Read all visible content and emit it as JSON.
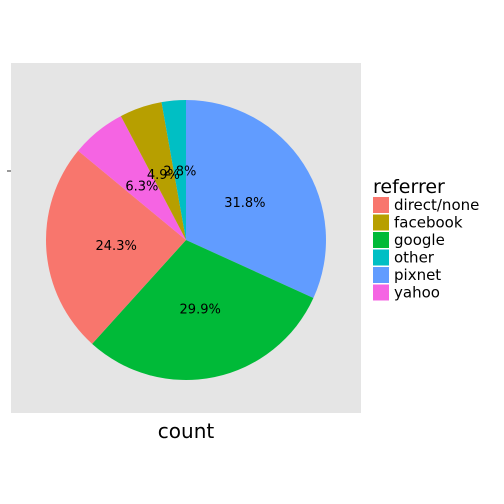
{
  "chart_data": {
    "type": "pie",
    "xlabel": "count",
    "legend_title": "referrer",
    "legend_position": "right",
    "background_panel": "#e5e5e5",
    "series": [
      {
        "name": "direct/none",
        "value": 24.3,
        "label": "24.3%",
        "color": "#f8766d"
      },
      {
        "name": "facebook",
        "value": 4.9,
        "label": "4.9%",
        "color": "#b79f00"
      },
      {
        "name": "google",
        "value": 29.9,
        "label": "29.9%",
        "color": "#00ba38"
      },
      {
        "name": "other",
        "value": 2.8,
        "label": "2.8%",
        "color": "#00bfc4"
      },
      {
        "name": "pixnet",
        "value": 31.8,
        "label": "31.8%",
        "color": "#619cff"
      },
      {
        "name": "yahoo",
        "value": 6.3,
        "label": "6.3%",
        "color": "#f564e3"
      }
    ],
    "slice_order_clockwise": [
      "pixnet",
      "google",
      "direct/none",
      "yahoo",
      "facebook",
      "other"
    ]
  }
}
